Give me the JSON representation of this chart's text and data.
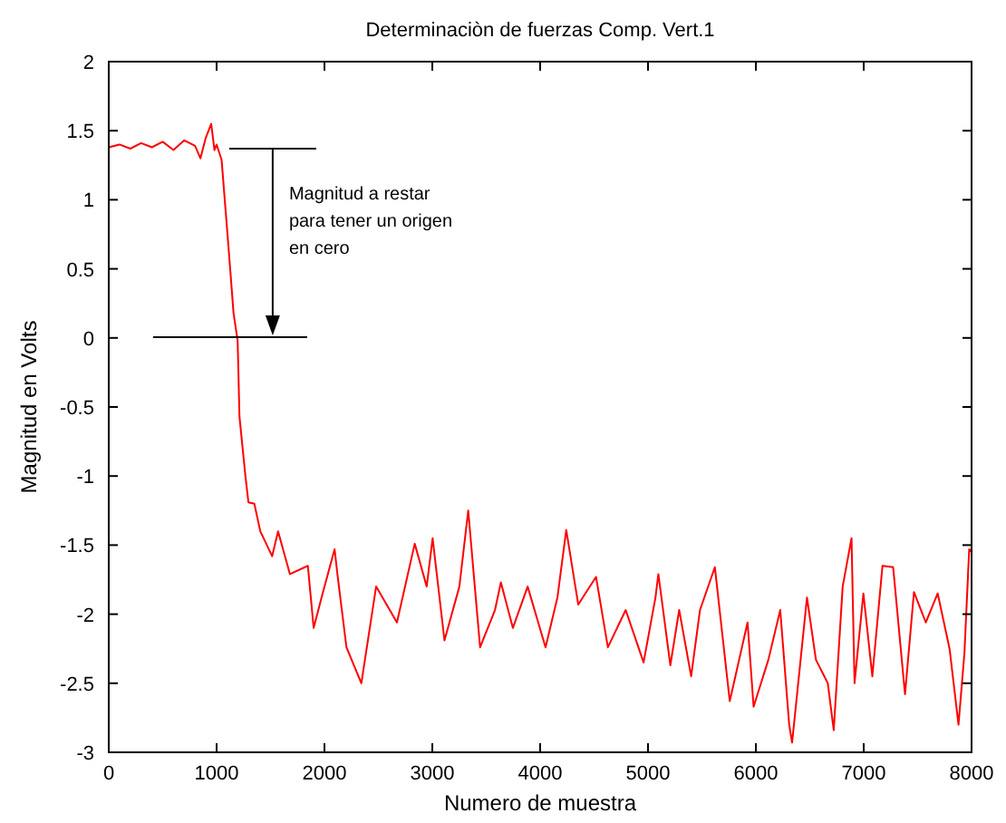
{
  "chart_data": {
    "type": "line",
    "title": "Determinaciòn de fuerzas Comp. Vert.1",
    "xlabel": "Numero de muestra",
    "ylabel": "Magnitud en Volts",
    "xlim": [
      0,
      8000
    ],
    "xticks": [
      0,
      1000,
      2000,
      3000,
      4000,
      5000,
      6000,
      7000,
      8000
    ],
    "ylim": [
      -3,
      2
    ],
    "yticks": [
      -3,
      -2.5,
      -2,
      -1.5,
      -1,
      -0.5,
      0,
      0.5,
      1,
      1.5,
      2
    ],
    "annotations": [
      "Magnitud a restar\npara tener un origen\nen cero"
    ],
    "series": [
      {
        "color": "#ff0000",
        "x": [
          0,
          100,
          200,
          300,
          400,
          500,
          600,
          700,
          800,
          850,
          900,
          950,
          980,
          1000,
          1046,
          1102,
          1157,
          1195,
          1212,
          1267,
          1295,
          1350,
          1405,
          1515,
          1570,
          1680,
          1846,
          1900,
          1983,
          2094,
          2120,
          2204,
          2342,
          2479,
          2672,
          2837,
          2948,
          3003,
          3113,
          3251,
          3333,
          3443,
          3581,
          3636,
          3747,
          3884,
          4050,
          4160,
          4242,
          4353,
          4518,
          4628,
          4793,
          4959,
          5069,
          5096,
          5207,
          5289,
          5400,
          5482,
          5620,
          5758,
          5923,
          5979,
          6116,
          6226,
          6309,
          6336,
          6474,
          6557,
          6667,
          6722,
          6805,
          6887,
          6915,
          6997,
          7080,
          7174,
          7273,
          7383,
          7466,
          7576,
          7686,
          7796,
          7879,
          7934,
          7978,
          8000
        ],
        "values": [
          1.38,
          1.4,
          1.37,
          1.41,
          1.38,
          1.42,
          1.36,
          1.43,
          1.39,
          1.3,
          1.45,
          1.55,
          1.36,
          1.4,
          1.29,
          0.74,
          0.18,
          -0.02,
          -0.57,
          -1.0,
          -1.19,
          -1.2,
          -1.4,
          -1.58,
          -1.4,
          -1.71,
          -1.65,
          -2.1,
          -1.85,
          -1.53,
          -1.71,
          -2.24,
          -2.5,
          -1.8,
          -2.06,
          -1.49,
          -1.8,
          -1.45,
          -2.19,
          -1.8,
          -1.25,
          -2.24,
          -1.97,
          -1.77,
          -2.1,
          -1.8,
          -2.24,
          -1.88,
          -1.39,
          -1.93,
          -1.73,
          -2.24,
          -1.97,
          -2.35,
          -1.88,
          -1.71,
          -2.37,
          -1.97,
          -2.45,
          -1.97,
          -1.66,
          -2.63,
          -2.06,
          -2.67,
          -2.33,
          -1.97,
          -2.8,
          -2.93,
          -1.88,
          -2.33,
          -2.5,
          -2.84,
          -1.8,
          -1.45,
          -2.5,
          -1.85,
          -2.45,
          -1.65,
          -1.66,
          -2.58,
          -1.84,
          -2.06,
          -1.85,
          -2.25,
          -2.8,
          -2.28,
          -1.53,
          -1.55
        ]
      }
    ]
  }
}
